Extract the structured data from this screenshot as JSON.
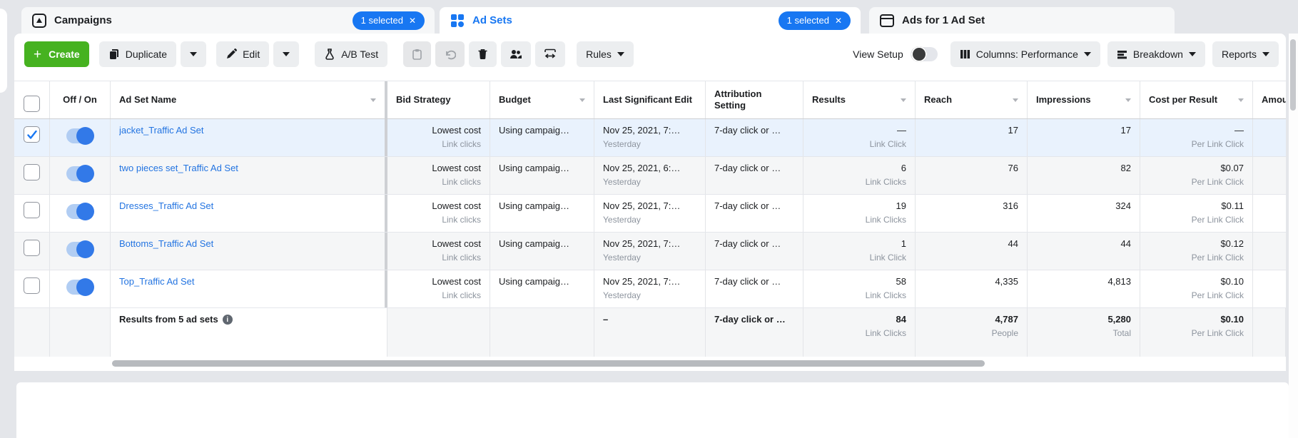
{
  "tabs": [
    {
      "label": "Campaigns",
      "badge": "1 selected",
      "icon": "campaigns-icon",
      "active": false
    },
    {
      "label": "Ad Sets",
      "badge": "1 selected",
      "icon": "ad-sets-icon",
      "active": true
    },
    {
      "label": "Ads for 1 Ad Set",
      "badge": null,
      "icon": "ads-icon",
      "active": false
    }
  ],
  "toolbar": {
    "create_label": "Create",
    "duplicate_label": "Duplicate",
    "edit_label": "Edit",
    "ab_test_label": "A/B Test",
    "rules_label": "Rules",
    "view_setup_label": "View Setup",
    "view_setup_on": false,
    "columns_label": "Columns: Performance",
    "breakdown_label": "Breakdown",
    "reports_label": "Reports"
  },
  "table": {
    "columns": [
      {
        "key": "check",
        "label": "",
        "sortable": false
      },
      {
        "key": "toggle",
        "label": "Off / On",
        "sortable": false
      },
      {
        "key": "name",
        "label": "Ad Set Name",
        "sortable": true
      },
      {
        "key": "bid",
        "label": "Bid Strategy",
        "sortable": false
      },
      {
        "key": "budget",
        "label": "Budget",
        "sortable": true
      },
      {
        "key": "edit",
        "label": "Last Significant Edit",
        "sortable": false
      },
      {
        "key": "attribution",
        "label": "Attribution Setting",
        "sortable": false
      },
      {
        "key": "results",
        "label": "Results",
        "sortable": true
      },
      {
        "key": "reach",
        "label": "Reach",
        "sortable": true
      },
      {
        "key": "impressions",
        "label": "Impressions",
        "sortable": true
      },
      {
        "key": "cpr",
        "label": "Cost per Result",
        "sortable": true
      },
      {
        "key": "amount",
        "label": "Amoun",
        "sortable": false
      }
    ],
    "rows": [
      {
        "name": "jacket_Traffic Ad Set",
        "selected": true,
        "toggle_on": true,
        "bid": "Lowest cost",
        "bid_sub": "Link clicks",
        "budget": "Using campaig…",
        "edit": "Nov 25, 2021, 7:…",
        "edit_sub": "Yesterday",
        "attribution": "7-day click or …",
        "results": "—",
        "results_sub": "Link Click",
        "reach": "17",
        "impressions": "17",
        "cpr": "—",
        "cpr_sub": "Per Link Click",
        "amount": ""
      },
      {
        "name": "two pieces set_Traffic Ad Set",
        "selected": false,
        "toggle_on": true,
        "bid": "Lowest cost",
        "bid_sub": "Link clicks",
        "budget": "Using campaig…",
        "edit": "Nov 25, 2021, 6:…",
        "edit_sub": "Yesterday",
        "attribution": "7-day click or …",
        "results": "6",
        "results_sub": "Link Clicks",
        "reach": "76",
        "impressions": "82",
        "cpr": "$0.07",
        "cpr_sub": "Per Link Click",
        "amount": ""
      },
      {
        "name": "Dresses_Traffic Ad Set",
        "selected": false,
        "toggle_on": true,
        "bid": "Lowest cost",
        "bid_sub": "Link clicks",
        "budget": "Using campaig…",
        "edit": "Nov 25, 2021, 7:…",
        "edit_sub": "Yesterday",
        "attribution": "7-day click or …",
        "results": "19",
        "results_sub": "Link Clicks",
        "reach": "316",
        "impressions": "324",
        "cpr": "$0.11",
        "cpr_sub": "Per Link Click",
        "amount": ""
      },
      {
        "name": "Bottoms_Traffic Ad Set",
        "selected": false,
        "toggle_on": true,
        "bid": "Lowest cost",
        "bid_sub": "Link clicks",
        "budget": "Using campaig…",
        "edit": "Nov 25, 2021, 7:…",
        "edit_sub": "Yesterday",
        "attribution": "7-day click or …",
        "results": "1",
        "results_sub": "Link Click",
        "reach": "44",
        "impressions": "44",
        "cpr": "$0.12",
        "cpr_sub": "Per Link Click",
        "amount": ""
      },
      {
        "name": "Top_Traffic Ad Set",
        "selected": false,
        "toggle_on": true,
        "bid": "Lowest cost",
        "bid_sub": "Link clicks",
        "budget": "Using campaig…",
        "edit": "Nov 25, 2021, 7:…",
        "edit_sub": "Yesterday",
        "attribution": "7-day click or …",
        "results": "58",
        "results_sub": "Link Clicks",
        "reach": "4,335",
        "impressions": "4,813",
        "cpr": "$0.10",
        "cpr_sub": "Per Link Click",
        "amount": ""
      }
    ],
    "summary": {
      "label": "Results from 5 ad sets",
      "edit": "–",
      "attribution": "7-day click or …",
      "results": "84",
      "results_sub": "Link Clicks",
      "reach": "4,787",
      "reach_sub": "People",
      "impressions": "5,280",
      "impressions_sub": "Total",
      "cpr": "$0.10",
      "cpr_sub": "Per Link Click",
      "amount": ""
    }
  },
  "colors": {
    "accent_blue": "#1877f2",
    "link_blue": "#2374e1",
    "create_green": "#46b220",
    "selected_row_bg": "#e9f2fd",
    "page_bg": "#e4e6ea"
  }
}
